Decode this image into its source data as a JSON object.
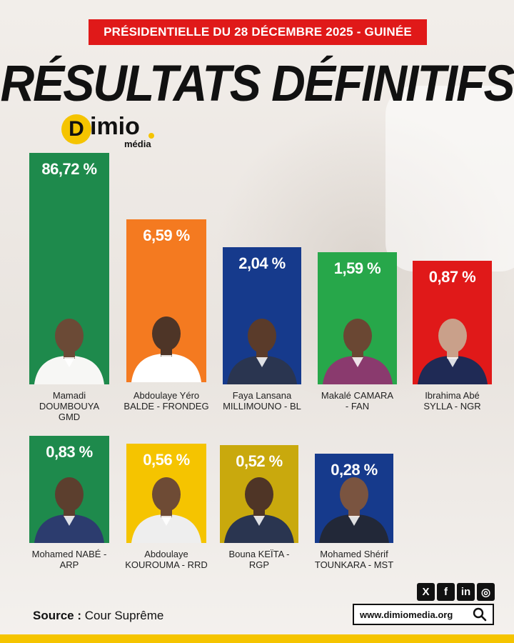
{
  "header": {
    "banner": "PRÉSIDENTIELLE DU 28 DÉCEMBRE 2025 - GUINÉE",
    "title": "RÉSULTATS DÉFINITIFS"
  },
  "logo": {
    "letter": "D",
    "word": "imio",
    "sub": "média"
  },
  "chart_data": {
    "type": "bar",
    "categories": [
      "Mamadi DOUMBOUYA GMD",
      "Abdoulaye Yéro BALDE - FRONDEG",
      "Faya Lansana MILLIMOUNO - BL",
      "Makalé CAMARA - FAN",
      "Ibrahima Abé SYLLA - NGR",
      "Mohamed NABÉ - ARP",
      "Abdoulaye KOUROUMA - RRD",
      "Bouna KEÏTA - RGP",
      "Mohamed Shérif TOUNKARA - MST"
    ],
    "values": [
      86.72,
      6.59,
      2.04,
      1.59,
      0.87,
      0.83,
      0.56,
      0.52,
      0.28
    ],
    "value_labels": [
      "86,72 %",
      "6,59 %",
      "2,04 %",
      "1,59 %",
      "0,87 %",
      "0,83 %",
      "0,56 %",
      "0,52 %",
      "0,28 %"
    ],
    "colors": [
      "#1e8a4c",
      "#f47a20",
      "#163a8c",
      "#27a74a",
      "#e01919",
      "#1e8a4c",
      "#f5c400",
      "#c9a90d",
      "#163a8c"
    ],
    "label_lines": [
      [
        "Mamadi",
        "DOUMBOUYA",
        "GMD"
      ],
      [
        "Abdoulaye Yéro",
        "BALDE - FRONDEG"
      ],
      [
        "Faya Lansana",
        "MILLIMOUNO - BL"
      ],
      [
        "Makalé CAMARA",
        "- FAN"
      ],
      [
        "Ibrahima Abé",
        "SYLLA - NGR"
      ],
      [
        "Mohamed NABÉ -",
        "ARP"
      ],
      [
        "Abdoulaye",
        "KOUROUMA - RRD"
      ],
      [
        "Bouna KEÏTA -",
        "RGP"
      ],
      [
        "Mohamed Shérif",
        "TOUNKARA - MST"
      ]
    ]
  },
  "footer": {
    "source_label": "Source :",
    "source_value": " Cour Suprême",
    "website": "www.dimiomedia.org",
    "socials": [
      "X",
      "f",
      "in",
      "◎"
    ]
  }
}
